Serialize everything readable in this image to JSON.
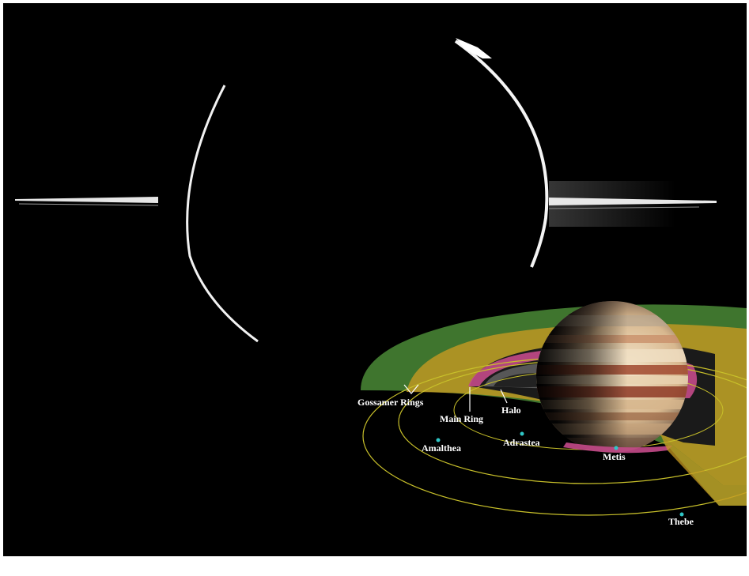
{
  "colors": {
    "background": "#000000",
    "frame": "#ffffff",
    "gossamer_ring": "#4a8a36",
    "gossamer_ring_inner": "#c79a22",
    "main_ring": "#c44a8a",
    "orbit": "#c8c02a",
    "moon_marker": "#2fc7c7",
    "label": "#ffffff"
  },
  "labels": {
    "gossamer_rings": "Gossamer Rings",
    "main_ring": "Main Ring",
    "halo": "Halo",
    "adrastea": "Adrastea",
    "amalthea": "Amalthea",
    "metis": "Metis",
    "thebe": "Thebe"
  }
}
